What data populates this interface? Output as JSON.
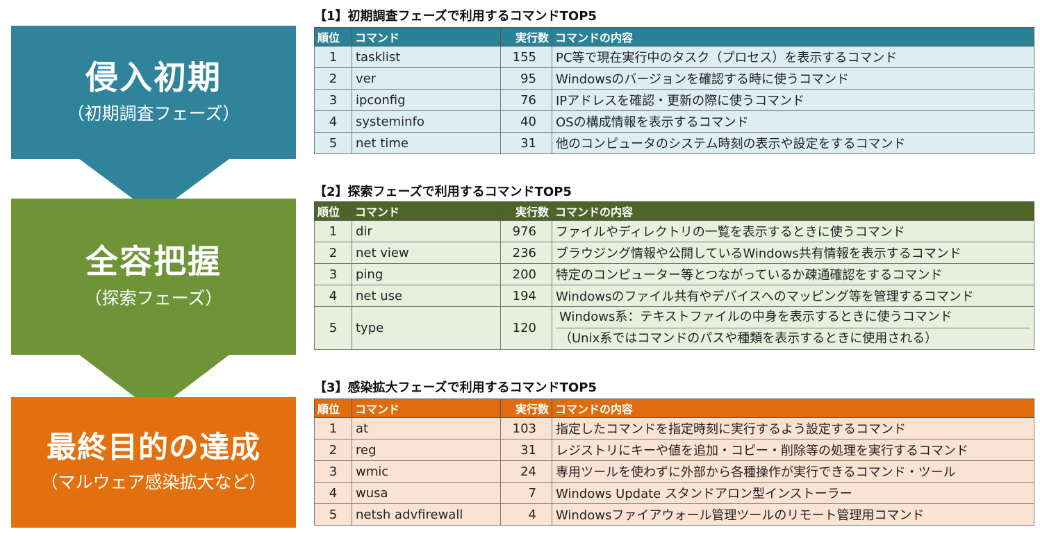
{
  "phases": [
    {
      "title": "侵入初期",
      "subtitle": "（初期調査フェーズ）",
      "color": "#2f849b"
    },
    {
      "title": "全容把握",
      "subtitle": "（探索フェーズ）",
      "color": "#6f9337"
    },
    {
      "title": "最終目的の達成",
      "subtitle": "（マルウェア感染拡大など）",
      "color": "#e3700f"
    }
  ],
  "headers": {
    "rank": "順位",
    "command": "コマンド",
    "count": "実行数",
    "desc": "コマンドの内容"
  },
  "sections": [
    {
      "title": "【1】初期調査フェーズで利用するコマンドTOP5",
      "rows": [
        {
          "rank": "1",
          "command": "tasklist",
          "count": "155",
          "desc": "PC等で現在実行中のタスク（プロセス）を表示するコマンド"
        },
        {
          "rank": "2",
          "command": "ver",
          "count": "95",
          "desc": "Windowsのバージョンを確認する時に使うコマンド"
        },
        {
          "rank": "3",
          "command": "ipconfig",
          "count": "76",
          "desc": "IPアドレスを確認・更新の際に使うコマンド"
        },
        {
          "rank": "4",
          "command": "systeminfo",
          "count": "40",
          "desc": "OSの構成情報を表示するコマンド"
        },
        {
          "rank": "5",
          "command": "net time",
          "count": "31",
          "desc": "他のコンピュータのシステム時刻の表示や設定をするコマンド"
        }
      ]
    },
    {
      "title": "【2】探索フェーズで利用するコマンドTOP5",
      "rows": [
        {
          "rank": "1",
          "command": "dir",
          "count": "976",
          "desc": "ファイルやディレクトリの一覧を表示するときに使うコマンド"
        },
        {
          "rank": "2",
          "command": "net view",
          "count": "236",
          "desc": "ブラウジング情報や公開しているWindows共有情報を表示するコマンド"
        },
        {
          "rank": "3",
          "command": "ping",
          "count": "200",
          "desc": "特定のコンピューター等とつながっているか疎通確認をするコマンド"
        },
        {
          "rank": "4",
          "command": "net use",
          "count": "194",
          "desc": "Windowsのファイル共有やデバイスへのマッピング等を管理するコマンド"
        },
        {
          "rank": "5",
          "command": "type",
          "count": "120",
          "desc": "Windows系：テキストファイルの中身を表示するときに使うコマンド",
          "desc2": "（Unix系ではコマンドのパスや種類を表示するときに使用される）"
        }
      ]
    },
    {
      "title": "【3】感染拡大フェーズで利用するコマンドTOP5",
      "rows": [
        {
          "rank": "1",
          "command": "at",
          "count": "103",
          "desc": "指定したコマンドを指定時刻に実行するよう設定するコマンド"
        },
        {
          "rank": "2",
          "command": "reg",
          "count": "31",
          "desc": "レジストリにキーや値を追加・コピー・削除等の処理を実行するコマンド"
        },
        {
          "rank": "3",
          "command": "wmic",
          "count": "24",
          "desc": "専用ツールを使わずに外部から各種操作が実行できるコマンド・ツール"
        },
        {
          "rank": "4",
          "command": "wusa",
          "count": "7",
          "desc": "Windows Update スタンドアロン型インストーラー"
        },
        {
          "rank": "5",
          "command": "netsh advfirewall",
          "count": "4",
          "desc": "Windowsファイアウォール管理ツールのリモート管理用コマンド"
        }
      ]
    }
  ]
}
